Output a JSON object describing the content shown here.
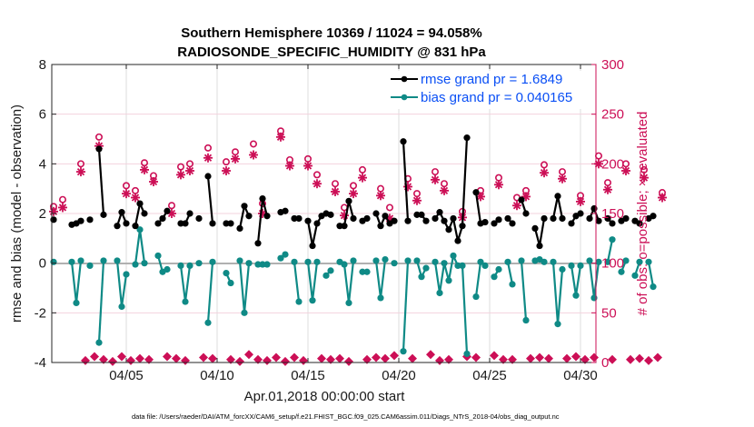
{
  "chart_data": {
    "type": "line",
    "title": [
      "Southern Hemisphere 10369 / 11024 = 94.058%",
      "RADIOSONDE_SPECIFIC_HUMIDITY @ 831 hPa"
    ],
    "xlabel": "Apr.01,2018 00:00:00 start",
    "ylabel": "rmse and bias (model - observation)",
    "y2label": "# of obs: o=possible; ×=evaluated",
    "xlim_days": [
      0,
      30
    ],
    "ylim": [
      -4,
      8
    ],
    "y2lim": [
      0,
      300
    ],
    "x_ticks": [
      {
        "day": 4,
        "label": "04/05"
      },
      {
        "day": 9,
        "label": "04/10"
      },
      {
        "day": 14,
        "label": "04/15"
      },
      {
        "day": 19,
        "label": "04/20"
      },
      {
        "day": 24,
        "label": "04/25"
      },
      {
        "day": 29,
        "label": "04/30"
      }
    ],
    "y_ticks": [
      -4,
      -2,
      0,
      2,
      4,
      6,
      8
    ],
    "y2_ticks": [
      0,
      50,
      100,
      150,
      200,
      250,
      300
    ],
    "grid": true,
    "legend": {
      "placement": "top-right",
      "entries": [
        {
          "name": "rmse grand pr = 1.6849",
          "color": "#000000"
        },
        {
          "name": "bias grand pr = 0.040165",
          "color": "#00847f"
        }
      ]
    },
    "colors": {
      "rmse": "#000000",
      "bias": "#0f8a86",
      "obs": "#cc0f56",
      "zero_line": "#b0b0b0",
      "legend_text": "#0a4ff5"
    },
    "time_step_hours": 6,
    "series": [
      {
        "name": "rmse",
        "values": [
          1.75,
          null,
          null,
          null,
          1.55,
          1.6,
          1.7,
          null,
          1.75,
          null,
          4.6,
          1.95,
          null,
          null,
          1.5,
          2.05,
          1.6,
          null,
          1.5,
          2.4,
          2.0,
          null,
          null,
          1.6,
          1.8,
          2.1,
          null,
          null,
          1.6,
          1.6,
          2.0,
          null,
          1.8,
          null,
          3.5,
          1.6,
          null,
          null,
          1.6,
          1.6,
          null,
          1.4,
          2.3,
          1.9,
          null,
          0.8,
          2.6,
          1.9,
          null,
          null,
          2.05,
          2.1,
          null,
          1.8,
          1.8,
          null,
          1.7,
          0.7,
          1.6,
          1.9,
          2.0,
          1.95,
          null,
          1.5,
          1.5,
          2.5,
          1.8,
          null,
          1.7,
          1.8,
          null,
          2.0,
          1.5,
          1.9,
          1.6,
          1.7,
          null,
          4.9,
          1.7,
          null,
          1.95,
          1.95,
          1.7,
          null,
          1.8,
          2.05,
          1.7,
          1.35,
          1.8,
          0.9,
          1.5,
          5.05,
          null,
          2.85,
          1.6,
          1.65,
          null,
          1.6,
          1.75,
          null,
          1.8,
          1.6,
          null,
          2.55,
          2.0,
          null,
          1.4,
          0.7,
          1.8,
          null,
          1.8,
          2.7,
          1.8,
          null,
          1.6,
          1.9,
          2.0,
          null,
          1.8,
          2.2,
          1.7,
          null,
          1.8,
          1.6,
          null,
          1.7,
          1.8,
          null,
          1.7,
          1.6,
          null,
          1.8,
          1.9
        ]
      },
      {
        "name": "bias",
        "values": [
          0.05,
          null,
          null,
          null,
          0.05,
          -1.6,
          0.1,
          null,
          -0.1,
          null,
          -3.2,
          0.1,
          null,
          null,
          0.1,
          -1.75,
          -0.45,
          null,
          -0.05,
          1.35,
          0.0,
          null,
          null,
          0.3,
          -0.35,
          -0.25,
          null,
          null,
          -0.1,
          -1.55,
          -0.1,
          null,
          0.0,
          null,
          -2.4,
          0.05,
          null,
          null,
          -0.4,
          -0.8,
          null,
          0.1,
          -2.0,
          0.0,
          null,
          -0.05,
          -0.05,
          -0.05,
          null,
          null,
          0.2,
          0.35,
          null,
          0.05,
          -1.55,
          null,
          0.05,
          -1.5,
          0.05,
          null,
          -0.5,
          -0.3,
          null,
          0.05,
          -0.05,
          -1.6,
          0.1,
          null,
          -0.35,
          -0.35,
          null,
          0.1,
          -1.4,
          0.15,
          null,
          0.0,
          null,
          -3.55,
          0.1,
          null,
          0.1,
          -0.55,
          -0.2,
          null,
          0.05,
          -1.2,
          0.0,
          -0.7,
          0.3,
          -0.1,
          -0.1,
          -3.65,
          null,
          -1.35,
          0.05,
          -0.1,
          null,
          -0.55,
          -0.25,
          null,
          0.05,
          -0.85,
          null,
          0.1,
          -2.3,
          null,
          0.1,
          0.15,
          0.05,
          null,
          0.05,
          -2.45,
          -0.25,
          null,
          -0.1,
          -1.3,
          -0.1,
          null,
          0.1,
          -1.4,
          0.05,
          null,
          0.05,
          0.95,
          null,
          -0.35,
          0.1,
          null,
          -0.5,
          0.05,
          null,
          0.05,
          -0.95
        ]
      },
      {
        "name": "possible",
        "values": [
          157,
          null,
          164,
          null,
          null,
          null,
          200,
          2,
          null,
          6,
          227,
          3,
          null,
          1,
          null,
          6,
          178,
          2,
          173,
          4,
          201,
          3,
          188,
          null,
          null,
          6,
          158,
          4,
          197,
          2,
          200,
          null,
          null,
          5,
          216,
          4,
          null,
          null,
          202,
          3,
          212,
          1,
          null,
          8,
          220,
          3,
          160,
          2,
          null,
          5,
          233,
          1,
          204,
          5,
          null,
          2,
          205,
          null,
          189,
          4,
          null,
          3,
          180,
          4,
          156,
          1,
          178,
          null,
          194,
          3,
          null,
          5,
          175,
          4,
          156,
          7,
          null,
          null,
          185,
          4,
          170,
          null,
          null,
          8,
          192,
          2,
          180,
          3,
          null,
          null,
          152,
          6,
          null,
          5,
          173,
          null,
          null,
          7,
          186,
          3,
          null,
          3,
          166,
          null,
          173,
          4,
          null,
          5,
          199,
          4,
          null,
          null,
          192,
          4,
          null,
          6,
          168,
          3,
          null,
          5,
          208,
          null,
          181,
          3,
          null,
          null,
          200,
          3,
          null,
          4,
          194,
          2,
          null,
          5,
          171
        ]
      },
      {
        "name": "evaluated",
        "values": [
          152,
          null,
          156,
          null,
          null,
          null,
          192,
          2,
          null,
          6,
          218,
          3,
          null,
          1,
          null,
          6,
          170,
          2,
          166,
          4,
          194,
          3,
          182,
          null,
          null,
          6,
          150,
          4,
          189,
          2,
          193,
          null,
          null,
          5,
          206,
          4,
          null,
          null,
          193,
          3,
          205,
          1,
          null,
          8,
          209,
          3,
          150,
          2,
          null,
          5,
          227,
          1,
          198,
          5,
          null,
          2,
          198,
          null,
          180,
          4,
          null,
          3,
          172,
          4,
          148,
          1,
          170,
          null,
          186,
          3,
          null,
          5,
          168,
          4,
          145,
          7,
          null,
          null,
          177,
          4,
          163,
          null,
          null,
          8,
          184,
          2,
          173,
          3,
          null,
          null,
          146,
          6,
          null,
          5,
          167,
          null,
          null,
          7,
          179,
          3,
          null,
          3,
          158,
          null,
          167,
          4,
          null,
          5,
          191,
          4,
          null,
          null,
          185,
          4,
          null,
          6,
          162,
          3,
          null,
          5,
          200,
          null,
          174,
          3,
          null,
          null,
          193,
          3,
          null,
          4,
          186,
          2,
          null,
          5,
          166
        ]
      }
    ]
  },
  "footer": {
    "data_file": "data file: /Users/raeder/DAI/ATM_forcXX/CAM6_setup/f.e21.FHIST_BGC.f09_025.CAM6assim.011/Diags_NTrS_2018-04/obs_diag_output.nc"
  }
}
